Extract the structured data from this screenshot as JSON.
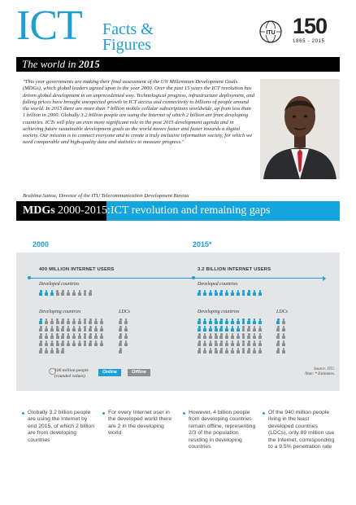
{
  "header": {
    "ict": "ICT",
    "facts_line1": "Facts &",
    "facts_line2": "Figures",
    "itu_logo_text": "ITU",
    "anniversary_number": "150",
    "anniversary_years": "1865 - 2015"
  },
  "title_bar": {
    "prefix": "The world in ",
    "year": "2015"
  },
  "quote": {
    "text": "\"This year governments are making their final assessment of the UN Millennium Development Goals (MDGs), which global leaders agreed upon in the year 2000. Over the past 15 years the ICT revolution has driven global development in an unprecedented way. Technological progress, infrastructure deployment, and falling prices have brought unexpected growth in ICT access and connectivity to billions of people around the world. In 2015 there are more than 7 billion mobile cellular subscriptions worldwide, up from less than 1 billion in 2000. Globally 3.2 billion people are using the Internet of which 2 billion are from developing countries. ICTs will play an even more significant role in the post 2015 development agenda and in achieving future sustainable development goals as the world moves faster and faster towards a digital society. Our mission is to connect everyone and to create a truly inclusive information society, for which we need comparable and high-quality data and statistics to measure progress.\"",
    "attribution": "Brahima Sanou, Director of the ITU Telecommunication Development Bureau"
  },
  "mdg": {
    "left_bold": "MDGs",
    "left_years": " 2000-2015:",
    "right": "ICT revolution and remaining gaps"
  },
  "infographic": {
    "year_2000": "2000",
    "year_2015": "2015*",
    "users_2000": "400 MILLION INTERNET USERS",
    "users_2015": "3.2 BILLION INTERNET USERS",
    "developed": "Developed countries",
    "developing": "Developing countries",
    "ldcs": "LDCs",
    "legend_text": "100 million people (rounded values)",
    "legend_online": "Online",
    "legend_offline": "Offline",
    "source": "Source: ITU.",
    "note": "Note: * Estimates.",
    "colors": {
      "online": "#1a9fd6",
      "offline": "#8d8f91"
    },
    "icon_counts": {
      "2000": {
        "developed": {
          "online": 3,
          "offline": 7
        },
        "developing": {
          "online": 1,
          "offline": 52
        },
        "ldcs": {
          "online": 0,
          "offline": 9
        }
      },
      "2015": {
        "developed": {
          "online": 12,
          "offline": 0
        },
        "developing": {
          "online": 20,
          "offline": 40
        },
        "ldcs": {
          "online": 1,
          "offline": 9
        }
      }
    }
  },
  "bullets": [
    "Globally 3.2 billion people are using the Internet by end 2015, of which 2 billion are from developing countries",
    "For every Internet user in the developed world there are 2 in the developing world",
    "However, 4 billion people from developing countries remain offline, representing 2/3 of the population residing in developing countries",
    "Of the 940 million people living in the least developed countries (LDCs), only 89 million use the Internet, corresponding to a 9.5% penetration rate"
  ]
}
